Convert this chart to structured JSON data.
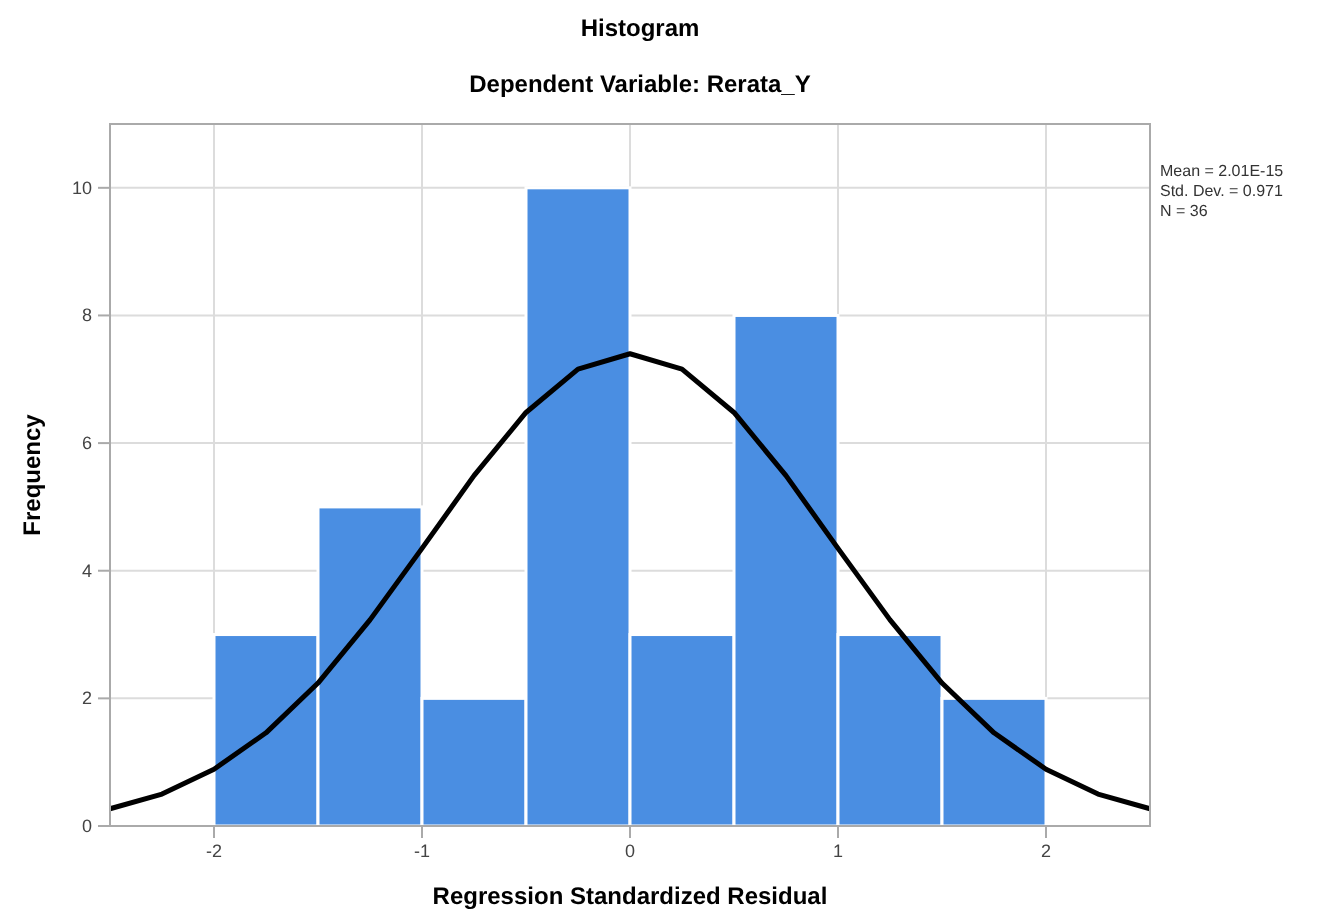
{
  "chart_data": {
    "type": "histogram",
    "title": "Histogram",
    "subtitle": "Dependent Variable: Rerata_Y",
    "xlabel": "Regression Standardized Residual",
    "ylabel": "Frequency",
    "bins": [
      -2,
      -1.5,
      -1,
      -0.5,
      0,
      0.5,
      1,
      1.5,
      2
    ],
    "values": [
      3,
      5,
      2,
      10,
      3,
      8,
      3,
      2
    ],
    "color": "#4a8ee2",
    "series": [
      {
        "type": "line",
        "color": "#000000",
        "x": [
          -2.5,
          -2.25,
          -2,
          -1.75,
          -1.5,
          -1.25,
          -1,
          -0.75,
          -0.5,
          -0.25,
          0,
          0.25,
          0.5,
          0.75,
          1,
          1.25,
          1.5,
          1.75,
          2,
          2.25,
          2.5
        ],
        "values": [
          0.27,
          0.5,
          0.89,
          1.46,
          2.24,
          3.23,
          4.35,
          5.49,
          6.48,
          7.16,
          7.4,
          7.16,
          6.48,
          5.49,
          4.35,
          3.23,
          2.24,
          1.46,
          0.89,
          0.5,
          0.27
        ]
      }
    ],
    "xlim": [
      -2.5,
      2.5
    ],
    "xticks": [
      -2,
      -1,
      0,
      1,
      2
    ],
    "ylim": [
      0,
      11
    ],
    "yticks": [
      0,
      2,
      4,
      6,
      8,
      10
    ],
    "grid": true,
    "annotations": [
      "Mean = 2.01E-15",
      "Std. Dev. = 0.971",
      "N = 36"
    ]
  }
}
